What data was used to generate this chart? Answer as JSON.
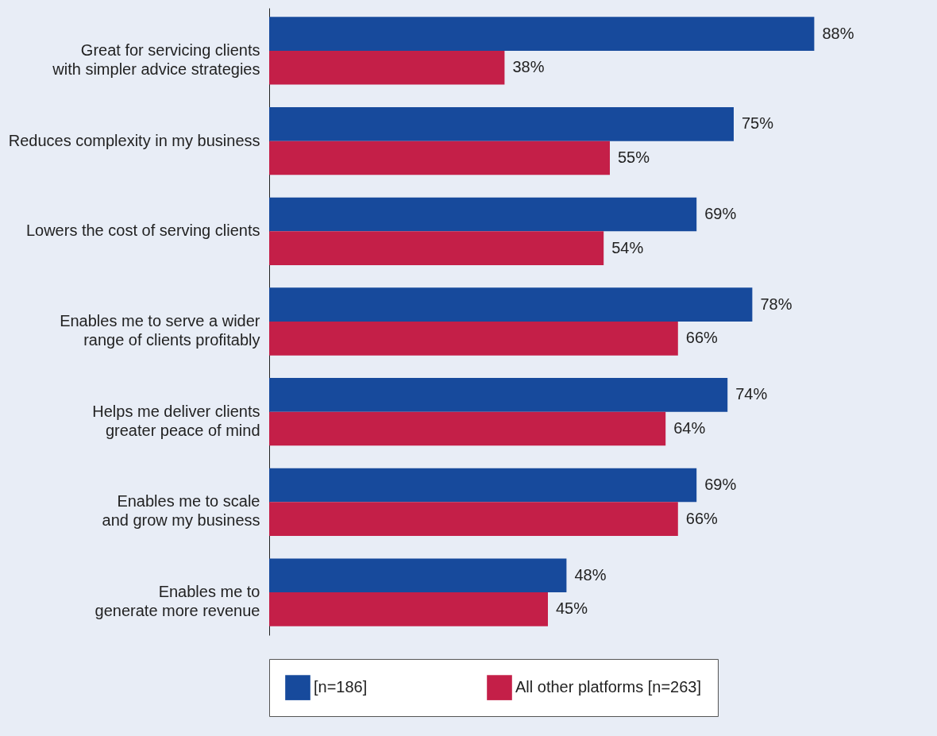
{
  "chart_data": {
    "type": "bar",
    "orientation": "horizontal",
    "categories": [
      "Great for servicing clients with simpler advice strategies",
      "Reduces complexity in my business",
      "Lowers the cost of serving clients",
      "Enables me to serve a wider range of clients profitably",
      "Helps me deliver clients greater peace of mind",
      "Enables me to scale and grow my business",
      "Enables me to generate more revenue"
    ],
    "series": [
      {
        "name": "[n=186]",
        "color": "#174a9c",
        "values": [
          88,
          75,
          69,
          78,
          74,
          69,
          48
        ],
        "value_labels": [
          "88%",
          "75%",
          "69%",
          "78%",
          "74%",
          "69%",
          "48%"
        ]
      },
      {
        "name": "All other platforms [n=263]",
        "color": "#c41f48",
        "values": [
          38,
          55,
          54,
          66,
          64,
          66,
          45
        ],
        "value_labels": [
          "38%",
          "55%",
          "54%",
          "66%",
          "64%",
          "66%",
          "45%"
        ]
      }
    ],
    "legend": "bottom",
    "tick_labels": "y"
  }
}
